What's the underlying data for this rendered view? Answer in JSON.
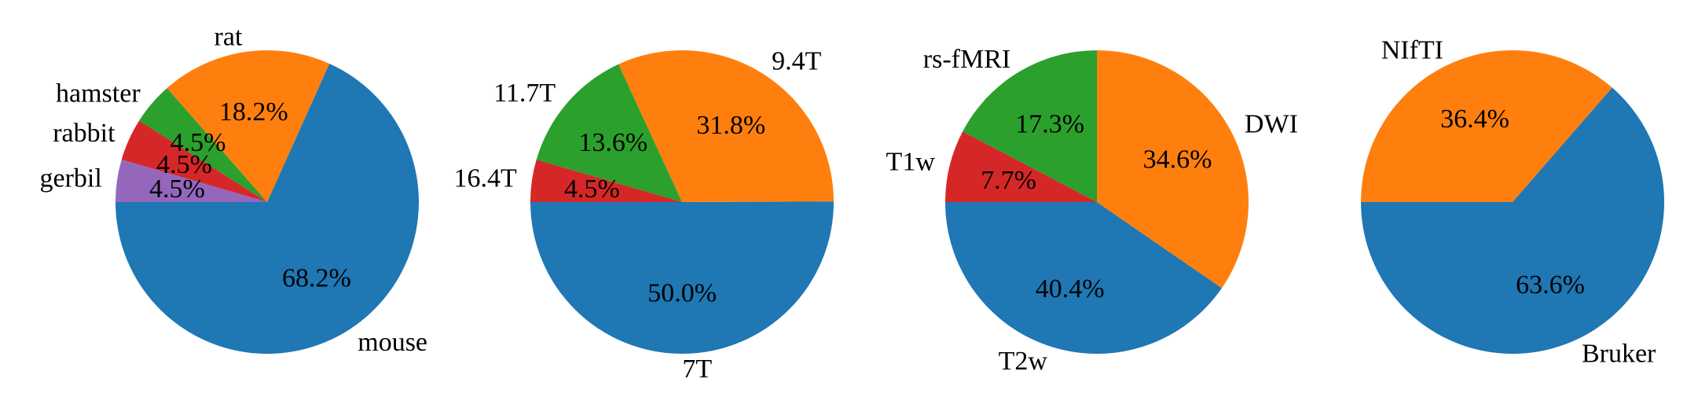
{
  "chart_data": [
    {
      "type": "pie",
      "title": "",
      "slices": [
        {
          "label": "mouse",
          "pct_label": "68.2%",
          "value": 68.2,
          "color": "#1f77b4"
        },
        {
          "label": "rat",
          "pct_label": "18.2%",
          "value": 18.2,
          "color": "#ff7f0e"
        },
        {
          "label": "hamster",
          "pct_label": "4.5%",
          "value": 4.5,
          "color": "#2ca02c"
        },
        {
          "label": "rabbit",
          "pct_label": "4.5%",
          "value": 4.5,
          "color": "#d62728"
        },
        {
          "label": "gerbil",
          "pct_label": "4.5%",
          "value": 4.5,
          "color": "#9467bd"
        }
      ]
    },
    {
      "type": "pie",
      "title": "",
      "slices": [
        {
          "label": "7T",
          "pct_label": "50.0%",
          "value": 50.0,
          "color": "#1f77b4"
        },
        {
          "label": "9.4T",
          "pct_label": "31.8%",
          "value": 31.8,
          "color": "#ff7f0e"
        },
        {
          "label": "11.7T",
          "pct_label": "13.6%",
          "value": 13.6,
          "color": "#2ca02c"
        },
        {
          "label": "16.4T",
          "pct_label": "4.5%",
          "value": 4.5,
          "color": "#d62728"
        }
      ]
    },
    {
      "type": "pie",
      "title": "",
      "slices": [
        {
          "label": "T2w",
          "pct_label": "40.4%",
          "value": 40.4,
          "color": "#1f77b4"
        },
        {
          "label": "DWI",
          "pct_label": "34.6%",
          "value": 34.6,
          "color": "#ff7f0e"
        },
        {
          "label": "rs-fMRI",
          "pct_label": "17.3%",
          "value": 17.3,
          "color": "#2ca02c"
        },
        {
          "label": "T1w",
          "pct_label": "7.7%",
          "value": 7.7,
          "color": "#d62728"
        }
      ]
    },
    {
      "type": "pie",
      "title": "",
      "slices": [
        {
          "label": "Bruker",
          "pct_label": "63.6%",
          "value": 63.6,
          "color": "#1f77b4"
        },
        {
          "label": "NIfTI",
          "pct_label": "36.4%",
          "value": 36.4,
          "color": "#ff7f0e"
        }
      ]
    }
  ]
}
